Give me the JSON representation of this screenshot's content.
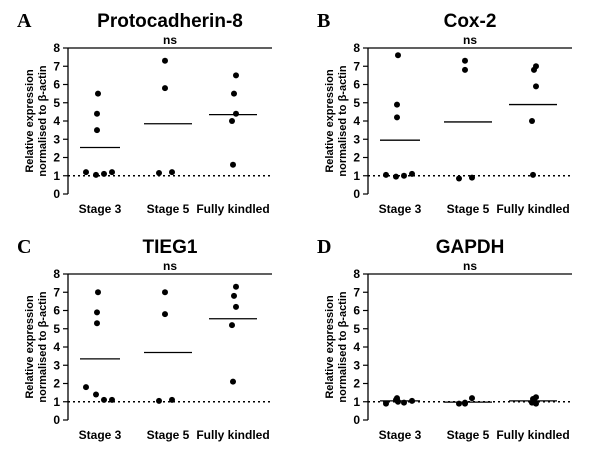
{
  "chart_data": [
    {
      "type": "scatter",
      "panel": "A",
      "title": "Protocadherin-8",
      "ylabel": [
        "Relative expression",
        "normalised to β-actin"
      ],
      "ylim": [
        0,
        8
      ],
      "yticks": [
        0,
        1,
        2,
        3,
        4,
        5,
        6,
        7,
        8
      ],
      "categories": [
        "Stage 3",
        "Stage 5",
        "Fully kindled"
      ],
      "significance": "ns",
      "reference_line": 1,
      "groups": [
        {
          "category": "Stage 3",
          "points": [
            5.5,
            4.4,
            3.5,
            1.2,
            1.05,
            1.1,
            1.2
          ],
          "mean": 2.55
        },
        {
          "category": "Stage 5",
          "points": [
            7.3,
            5.8,
            1.15,
            1.2
          ],
          "mean": 3.85
        },
        {
          "category": "Fully kindled",
          "points": [
            6.5,
            5.5,
            4.4,
            4.0,
            1.6
          ],
          "mean": 4.35
        }
      ]
    },
    {
      "type": "scatter",
      "panel": "B",
      "title": "Cox-2",
      "ylabel": [
        "Relative expression",
        "normalised to β-actin"
      ],
      "ylim": [
        0,
        8
      ],
      "yticks": [
        0,
        1,
        2,
        3,
        4,
        5,
        6,
        7,
        8
      ],
      "categories": [
        "Stage 3",
        "Stage 5",
        "Fully kindled"
      ],
      "significance": "ns",
      "reference_line": 1,
      "groups": [
        {
          "category": "Stage 3",
          "points": [
            7.6,
            4.9,
            4.2,
            1.05,
            0.95,
            1.0,
            1.1
          ],
          "mean": 2.95
        },
        {
          "category": "Stage 5",
          "points": [
            7.3,
            6.8,
            0.85,
            0.9
          ],
          "mean": 3.95
        },
        {
          "category": "Fully kindled",
          "points": [
            7.0,
            6.8,
            5.9,
            4.0,
            1.05
          ],
          "mean": 4.9
        }
      ]
    },
    {
      "type": "scatter",
      "panel": "C",
      "title": "TIEG1",
      "ylabel": [
        "Relative expression",
        "normalised to β-actin"
      ],
      "ylim": [
        0,
        8
      ],
      "yticks": [
        0,
        1,
        2,
        3,
        4,
        5,
        6,
        7,
        8
      ],
      "categories": [
        "Stage 3",
        "Stage 5",
        "Fully kindled"
      ],
      "significance": "ns",
      "reference_line": 1,
      "groups": [
        {
          "category": "Stage 3",
          "points": [
            7.0,
            5.9,
            5.3,
            1.8,
            1.4,
            1.1,
            1.1
          ],
          "mean": 3.35
        },
        {
          "category": "Stage 5",
          "points": [
            7.0,
            5.8,
            1.05,
            1.1
          ],
          "mean": 3.7
        },
        {
          "category": "Fully kindled",
          "points": [
            7.3,
            6.8,
            6.2,
            5.2,
            2.1
          ],
          "mean": 5.55
        }
      ]
    },
    {
      "type": "scatter",
      "panel": "D",
      "title": "GAPDH",
      "ylabel": [
        "Relative expression",
        "normalised to β-actin"
      ],
      "ylim": [
        0,
        8
      ],
      "yticks": [
        0,
        1,
        2,
        3,
        4,
        5,
        6,
        7,
        8
      ],
      "categories": [
        "Stage 3",
        "Stage 5",
        "Fully kindled"
      ],
      "significance": "ns",
      "reference_line": 1,
      "groups": [
        {
          "category": "Stage 3",
          "points": [
            1.0,
            1.1,
            1.2,
            0.9,
            1.1,
            0.95,
            1.05
          ],
          "mean": 1.05
        },
        {
          "category": "Stage 5",
          "points": [
            0.95,
            0.9,
            0.9,
            1.2
          ],
          "mean": 0.98
        },
        {
          "category": "Fully kindled",
          "points": [
            1.25,
            1.1,
            0.9,
            0.95,
            1.15
          ],
          "mean": 1.05
        }
      ]
    }
  ]
}
